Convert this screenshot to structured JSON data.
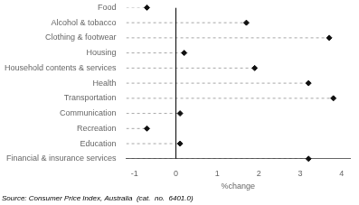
{
  "chart_data": {
    "type": "dot",
    "orientation": "horizontal",
    "categories": [
      "Food",
      "Alcohol & tobacco",
      "Clothing & footwear",
      "Housing",
      "Household contents & services",
      "Health",
      "Transportation",
      "Communication",
      "Recreation",
      "Education",
      "Financial & insurance services"
    ],
    "values": [
      -0.7,
      1.7,
      3.7,
      0.2,
      1.9,
      3.2,
      3.8,
      0.1,
      -0.7,
      0.1,
      3.2
    ],
    "color": "#111111",
    "marker": "diamond",
    "line_style": "dashed",
    "xlabel": "%change",
    "xlim": [
      -1.2,
      4.2
    ],
    "xticks": [
      -1,
      0,
      1,
      2,
      3,
      4
    ],
    "grid": false,
    "annotations": [
      "Source: Consumer Price Index, Australia  (cat.  no.  6401.0)"
    ]
  }
}
